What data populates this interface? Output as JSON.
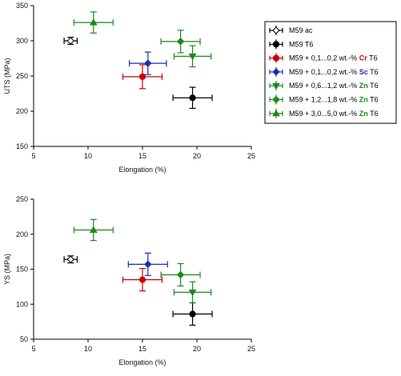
{
  "chart_data": [
    {
      "type": "scatter",
      "xlabel": "Elongation (%)",
      "ylabel": "UTS (MPa)",
      "xlim": [
        5,
        25
      ],
      "ylim": [
        150,
        350
      ],
      "xticks": [
        "5",
        "10",
        "15",
        "20",
        "25"
      ],
      "yticks": [
        "150",
        "200",
        "250",
        "300",
        "350"
      ],
      "grid": false,
      "series": [
        {
          "name_parts": [
            "M59 ac"
          ],
          "name_colors": [
            "#000000"
          ],
          "color": "#000000",
          "marker": "diamond-open",
          "points": [
            {
              "x": 8.4,
              "y": 300,
              "xerr": 0.6,
              "yerr": 5
            }
          ]
        },
        {
          "name_parts": [
            "M59 T6"
          ],
          "name_colors": [
            "#000000"
          ],
          "color": "#000000",
          "marker": "circle",
          "points": [
            {
              "x": 19.6,
              "y": 219,
              "xerr": 1.8,
              "yerr": 15
            }
          ]
        },
        {
          "name_parts": [
            "M59 + 0,1...0,2 wt.-% ",
            "Cr",
            " T6"
          ],
          "name_colors": [
            "#000000",
            "#cc0000",
            "#000000"
          ],
          "color": "#cc0000",
          "marker": "circle",
          "points": [
            {
              "x": 15.0,
              "y": 249,
              "xerr": 1.8,
              "yerr": 17
            }
          ]
        },
        {
          "name_parts": [
            "M59 + 0,1...0,2 wt.-% ",
            "Sc",
            " T6"
          ],
          "name_colors": [
            "#000000",
            "#1a2fb0",
            "#000000"
          ],
          "color": "#1a2fb0",
          "marker": "diamond",
          "points": [
            {
              "x": 15.5,
              "y": 268,
              "xerr": 1.7,
              "yerr": 16
            }
          ]
        },
        {
          "name_parts": [
            "M59 + 0,6...1,2 wt.-% ",
            "Zn",
            " T6"
          ],
          "name_colors": [
            "#000000",
            "#1a8a1a",
            "#000000"
          ],
          "color": "#1a8a1a",
          "marker": "triangle-down",
          "points": [
            {
              "x": 19.6,
              "y": 278,
              "xerr": 1.7,
              "yerr": 15
            }
          ]
        },
        {
          "name_parts": [
            "M59 + 1,2...1,8 wt.-% ",
            "Zn",
            " T6"
          ],
          "name_colors": [
            "#000000",
            "#1a8a1a",
            "#000000"
          ],
          "color": "#1a8a1a",
          "marker": "diamond",
          "points": [
            {
              "x": 18.5,
              "y": 299,
              "xerr": 1.8,
              "yerr": 16
            }
          ]
        },
        {
          "name_parts": [
            "M59 + 3,0...5,0 wt.-% ",
            "Zn",
            " T6"
          ],
          "name_colors": [
            "#000000",
            "#1a8a1a",
            "#000000"
          ],
          "color": "#1a8a1a",
          "marker": "triangle-up",
          "points": [
            {
              "x": 10.5,
              "y": 326,
              "xerr": 1.8,
              "yerr": 15
            }
          ]
        }
      ],
      "legend_position": "right"
    },
    {
      "type": "scatter",
      "xlabel": "Elongation (%)",
      "ylabel": "YS (MPa)",
      "xlim": [
        5,
        25
      ],
      "ylim": [
        50,
        250
      ],
      "xticks": [
        "5",
        "10",
        "15",
        "20",
        "25"
      ],
      "yticks": [
        "50",
        "100",
        "150",
        "200",
        "250"
      ],
      "grid": false,
      "series": [
        {
          "name": "M59 ac",
          "color": "#000000",
          "marker": "diamond-open",
          "points": [
            {
              "x": 8.4,
              "y": 164,
              "xerr": 0.6,
              "yerr": 5
            }
          ]
        },
        {
          "name": "M59 T6",
          "color": "#000000",
          "marker": "circle",
          "points": [
            {
              "x": 19.6,
              "y": 86,
              "xerr": 1.8,
              "yerr": 16
            }
          ]
        },
        {
          "name": "M59 + 0,1...0,2 wt.-% Cr T6",
          "color": "#cc0000",
          "marker": "circle",
          "points": [
            {
              "x": 15.0,
              "y": 135,
              "xerr": 1.8,
              "yerr": 16
            }
          ]
        },
        {
          "name": "M59 + 0,1...0,2 wt.-% Sc T6",
          "color": "#1a2fb0",
          "marker": "diamond",
          "points": [
            {
              "x": 15.5,
              "y": 157,
              "xerr": 1.8,
              "yerr": 16
            }
          ]
        },
        {
          "name": "M59 + 0,6...1,2 wt.-% Zn T6",
          "color": "#1a8a1a",
          "marker": "triangle-down",
          "points": [
            {
              "x": 19.6,
              "y": 117,
              "xerr": 1.7,
              "yerr": 15
            }
          ]
        },
        {
          "name": "M59 + 1,2...1,8 wt.-% Zn T6",
          "color": "#1a8a1a",
          "marker": "diamond",
          "points": [
            {
              "x": 18.5,
              "y": 142,
              "xerr": 1.8,
              "yerr": 16
            }
          ]
        },
        {
          "name": "M59 + 3,0...5,0 wt.-% Zn T6",
          "color": "#1a8a1a",
          "marker": "triangle-up",
          "points": [
            {
              "x": 10.5,
              "y": 206,
              "xerr": 1.8,
              "yerr": 15
            }
          ]
        }
      ]
    }
  ]
}
